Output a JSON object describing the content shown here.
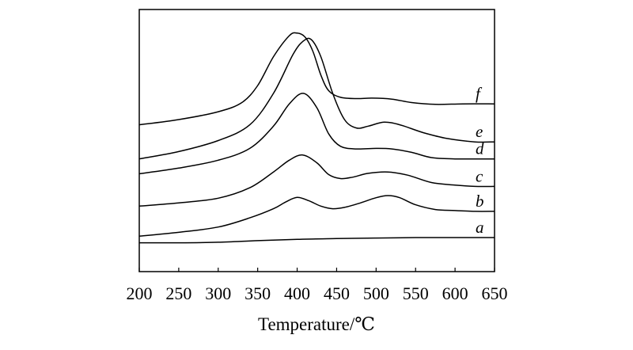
{
  "chart_data": {
    "type": "line",
    "title": "",
    "xlabel": "Temperature/℃",
    "ylabel": "",
    "xlim": [
      200,
      650
    ],
    "ylim": [
      0,
      1
    ],
    "grid": false,
    "x_ticks": [
      "200",
      "250",
      "300",
      "350",
      "400",
      "450",
      "500",
      "550",
      "600",
      "650"
    ],
    "series": [
      {
        "name": "a",
        "points": [
          [
            200,
            0.11
          ],
          [
            250,
            0.11
          ],
          [
            300,
            0.112
          ],
          [
            350,
            0.118
          ],
          [
            400,
            0.123
          ],
          [
            450,
            0.126
          ],
          [
            500,
            0.128
          ],
          [
            550,
            0.13
          ],
          [
            600,
            0.13
          ],
          [
            650,
            0.13
          ]
        ]
      },
      {
        "name": "b",
        "points": [
          [
            200,
            0.135
          ],
          [
            250,
            0.15
          ],
          [
            300,
            0.17
          ],
          [
            340,
            0.205
          ],
          [
            370,
            0.24
          ],
          [
            385,
            0.265
          ],
          [
            400,
            0.283
          ],
          [
            415,
            0.27
          ],
          [
            430,
            0.25
          ],
          [
            445,
            0.24
          ],
          [
            460,
            0.245
          ],
          [
            480,
            0.262
          ],
          [
            500,
            0.282
          ],
          [
            515,
            0.29
          ],
          [
            530,
            0.282
          ],
          [
            550,
            0.255
          ],
          [
            575,
            0.237
          ],
          [
            600,
            0.233
          ],
          [
            625,
            0.23
          ],
          [
            650,
            0.23
          ]
        ]
      },
      {
        "name": "c",
        "points": [
          [
            200,
            0.25
          ],
          [
            250,
            0.262
          ],
          [
            300,
            0.28
          ],
          [
            340,
            0.32
          ],
          [
            370,
            0.38
          ],
          [
            390,
            0.425
          ],
          [
            407,
            0.445
          ],
          [
            425,
            0.415
          ],
          [
            440,
            0.37
          ],
          [
            455,
            0.355
          ],
          [
            470,
            0.36
          ],
          [
            490,
            0.375
          ],
          [
            515,
            0.38
          ],
          [
            540,
            0.368
          ],
          [
            570,
            0.34
          ],
          [
            600,
            0.33
          ],
          [
            625,
            0.325
          ],
          [
            650,
            0.325
          ]
        ]
      },
      {
        "name": "d",
        "points": [
          [
            200,
            0.373
          ],
          [
            250,
            0.395
          ],
          [
            300,
            0.425
          ],
          [
            340,
            0.47
          ],
          [
            370,
            0.555
          ],
          [
            390,
            0.64
          ],
          [
            408,
            0.68
          ],
          [
            425,
            0.625
          ],
          [
            440,
            0.525
          ],
          [
            455,
            0.478
          ],
          [
            475,
            0.468
          ],
          [
            500,
            0.47
          ],
          [
            520,
            0.468
          ],
          [
            545,
            0.455
          ],
          [
            570,
            0.435
          ],
          [
            600,
            0.43
          ],
          [
            625,
            0.43
          ],
          [
            650,
            0.43
          ]
        ]
      },
      {
        "name": "e",
        "points": [
          [
            200,
            0.43
          ],
          [
            250,
            0.458
          ],
          [
            300,
            0.5
          ],
          [
            340,
            0.56
          ],
          [
            370,
            0.68
          ],
          [
            395,
            0.83
          ],
          [
            408,
            0.88
          ],
          [
            418,
            0.885
          ],
          [
            430,
            0.82
          ],
          [
            445,
            0.68
          ],
          [
            460,
            0.58
          ],
          [
            475,
            0.548
          ],
          [
            490,
            0.555
          ],
          [
            510,
            0.57
          ],
          [
            530,
            0.56
          ],
          [
            560,
            0.53
          ],
          [
            590,
            0.508
          ],
          [
            625,
            0.495
          ],
          [
            650,
            0.495
          ]
        ]
      },
      {
        "name": "f",
        "points": [
          [
            200,
            0.56
          ],
          [
            250,
            0.58
          ],
          [
            300,
            0.61
          ],
          [
            330,
            0.645
          ],
          [
            350,
            0.71
          ],
          [
            370,
            0.82
          ],
          [
            390,
            0.9
          ],
          [
            400,
            0.91
          ],
          [
            410,
            0.895
          ],
          [
            420,
            0.84
          ],
          [
            430,
            0.75
          ],
          [
            440,
            0.69
          ],
          [
            455,
            0.665
          ],
          [
            475,
            0.66
          ],
          [
            495,
            0.662
          ],
          [
            520,
            0.658
          ],
          [
            545,
            0.645
          ],
          [
            575,
            0.638
          ],
          [
            610,
            0.64
          ],
          [
            650,
            0.64
          ]
        ]
      }
    ],
    "series_labels": [
      "f",
      "e",
      "d",
      "c",
      "b",
      "a"
    ]
  }
}
